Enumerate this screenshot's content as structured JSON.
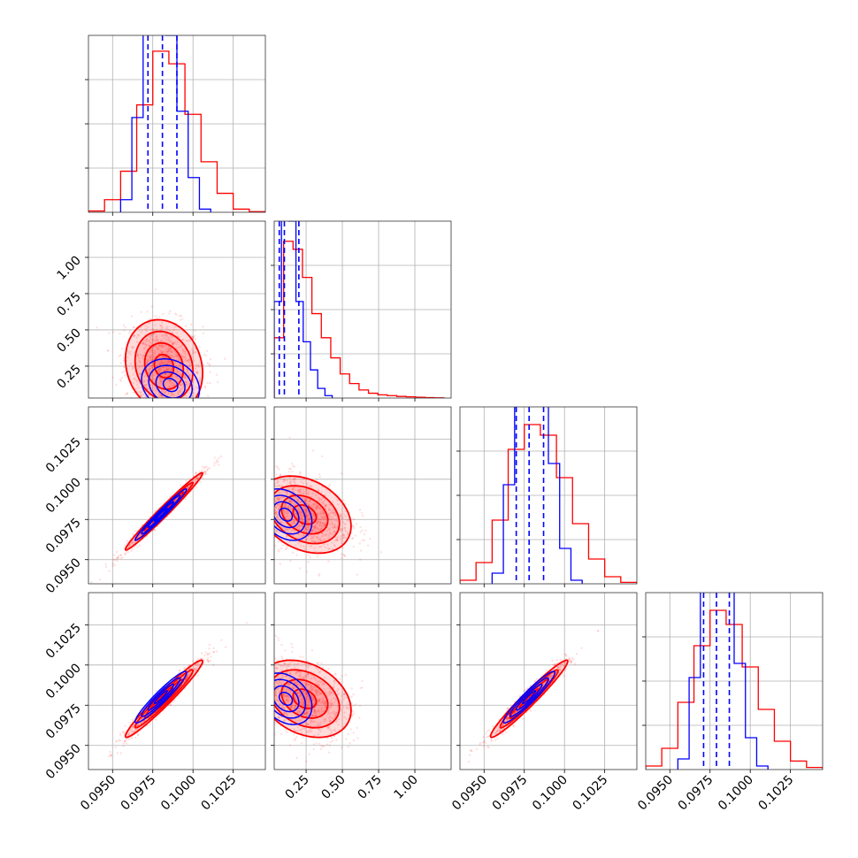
{
  "chart_data": {
    "type": "corner",
    "colors": {
      "posterior_a": "#ff0000",
      "posterior_b": "#0000ff",
      "grid": "#b0b0b0"
    },
    "parameters": [
      {
        "range": [
          0.0935,
          0.1045
        ],
        "ticks": [
          0.095,
          0.0975,
          0.1,
          0.1025
        ],
        "tick_labels": [
          "0.0950",
          "0.0975",
          "0.1000",
          "0.1025"
        ]
      },
      {
        "range": [
          0.03,
          1.25
        ],
        "ticks": [
          0.25,
          0.5,
          0.75,
          1.0
        ],
        "tick_labels": [
          "0.25",
          "0.50",
          "0.75",
          "1.00"
        ]
      },
      {
        "range": [
          0.0935,
          0.1045
        ],
        "ticks": [
          0.095,
          0.0975,
          0.1,
          0.1025
        ],
        "tick_labels": [
          "0.0950",
          "0.0975",
          "0.1000",
          "0.1025"
        ]
      },
      {
        "range": [
          0.0935,
          0.1045
        ],
        "ticks": [
          0.095,
          0.0975,
          0.1,
          0.1025
        ],
        "tick_labels": [
          "0.0950",
          "0.0975",
          "0.1000",
          "0.1025"
        ]
      }
    ],
    "histograms": [
      {
        "param": 0,
        "edges": [
          0.0935,
          0.0945,
          0.0955,
          0.0965,
          0.0975,
          0.0985,
          0.0995,
          0.1005,
          0.1015,
          0.1025,
          0.1035,
          0.1045
        ],
        "red": [
          0.02,
          0.2,
          0.65,
          1.7,
          2.55,
          2.35,
          1.55,
          0.8,
          0.3,
          0.05,
          0.01
        ],
        "blue_edges": [
          0.0955,
          0.0962,
          0.0969,
          0.0976,
          0.0983,
          0.099,
          0.0997,
          0.1004,
          0.1011
        ],
        "blue": [
          0.2,
          1.5,
          3.4,
          3.0,
          2.8,
          1.6,
          0.55,
          0.05
        ],
        "quantiles": [
          0.0972,
          0.0981,
          0.099
        ],
        "ylim": [
          0,
          2.8
        ]
      },
      {
        "param": 1,
        "edges": [
          0.03,
          0.095,
          0.16,
          0.225,
          0.29,
          0.355,
          0.42,
          0.485,
          0.55,
          0.615,
          0.68,
          0.745,
          0.81,
          0.875,
          0.94,
          1.005,
          1.07,
          1.135,
          1.2
        ],
        "red": [
          0.75,
          1.95,
          1.85,
          1.5,
          1.05,
          0.75,
          0.5,
          0.3,
          0.18,
          0.1,
          0.06,
          0.04,
          0.03,
          0.02,
          0.015,
          0.01,
          0.005,
          0.003
        ],
        "blue_edges": [
          0.03,
          0.08,
          0.13,
          0.18,
          0.23,
          0.28,
          0.33,
          0.38,
          0.43
        ],
        "blue": [
          1.2,
          3.2,
          2.2,
          1.2,
          0.7,
          0.35,
          0.12,
          0.03
        ],
        "quantiles": [
          0.065,
          0.1,
          0.2
        ],
        "ylim": [
          0,
          2.2
        ]
      },
      {
        "param": 2,
        "edges": [
          0.0935,
          0.0945,
          0.0955,
          0.0965,
          0.0975,
          0.0985,
          0.0995,
          0.1005,
          0.1015,
          0.1025,
          0.1035,
          0.1045
        ],
        "red": [
          0.05,
          0.3,
          0.9,
          1.9,
          2.25,
          2.1,
          1.5,
          0.85,
          0.35,
          0.1,
          0.02
        ],
        "blue_edges": [
          0.0955,
          0.0962,
          0.0969,
          0.0976,
          0.0983,
          0.099,
          0.0997,
          0.1004,
          0.1011
        ],
        "blue": [
          0.15,
          1.4,
          3.0,
          2.9,
          2.7,
          1.7,
          0.5,
          0.05
        ],
        "quantiles": [
          0.097,
          0.0978,
          0.0987
        ],
        "ylim": [
          0,
          2.5
        ]
      },
      {
        "param": 3,
        "edges": [
          0.0935,
          0.0945,
          0.0955,
          0.0965,
          0.0975,
          0.0985,
          0.0995,
          0.1005,
          0.1015,
          0.1025,
          0.1035,
          0.1045
        ],
        "red": [
          0.05,
          0.3,
          0.95,
          1.75,
          2.25,
          2.05,
          1.45,
          0.85,
          0.4,
          0.12,
          0.03
        ],
        "blue_edges": [
          0.0955,
          0.0962,
          0.0969,
          0.0976,
          0.0983,
          0.099,
          0.0997,
          0.1004,
          0.1011
        ],
        "blue": [
          0.15,
          1.3,
          3.0,
          3.1,
          2.6,
          1.5,
          0.45,
          0.05
        ],
        "quantiles": [
          0.0971,
          0.0979,
          0.0987
        ],
        "ylim": [
          0,
          2.5
        ]
      }
    ],
    "panels2d": [
      {
        "x": 0,
        "y": 1,
        "red": {
          "mean": [
            0.0982,
            0.25
          ],
          "sd": [
            0.0012,
            0.16
          ],
          "rho": -0.15
        },
        "blue": {
          "mean": [
            0.0986,
            0.12
          ],
          "sd": [
            0.0009,
            0.09
          ],
          "rho": -0.2
        }
      },
      {
        "x": 0,
        "y": 2,
        "red": {
          "mean": [
            0.0982,
            0.098
          ],
          "sd": [
            0.0012,
            0.0012
          ],
          "rho": 0.985
        },
        "blue": {
          "mean": [
            0.098,
            0.0978
          ],
          "sd": [
            0.0008,
            0.0008
          ],
          "rho": 0.98
        }
      },
      {
        "x": 1,
        "y": 2,
        "red": {
          "mean": [
            0.24,
            0.0978
          ],
          "sd": [
            0.16,
            0.0012
          ],
          "rho": -0.3
        },
        "blue": {
          "mean": [
            0.11,
            0.0978
          ],
          "sd": [
            0.09,
            0.0008
          ],
          "rho": -0.3
        }
      },
      {
        "x": 0,
        "y": 3,
        "red": {
          "mean": [
            0.0982,
            0.0979
          ],
          "sd": [
            0.0012,
            0.0012
          ],
          "rho": 0.97
        },
        "blue": {
          "mean": [
            0.098,
            0.098
          ],
          "sd": [
            0.0008,
            0.0008
          ],
          "rho": 0.95
        }
      },
      {
        "x": 1,
        "y": 3,
        "red": {
          "mean": [
            0.24,
            0.0979
          ],
          "sd": [
            0.16,
            0.0012
          ],
          "rho": -0.3
        },
        "blue": {
          "mean": [
            0.11,
            0.0979
          ],
          "sd": [
            0.09,
            0.0008
          ],
          "rho": -0.3
        }
      },
      {
        "x": 2,
        "y": 3,
        "red": {
          "mean": [
            0.0978,
            0.0979
          ],
          "sd": [
            0.0012,
            0.0012
          ],
          "rho": 0.97
        },
        "blue": {
          "mean": [
            0.0978,
            0.098
          ],
          "sd": [
            0.0008,
            0.0008
          ],
          "rho": 0.95
        }
      }
    ],
    "title": "",
    "xlabel": "",
    "ylabel": "",
    "grid": true,
    "contour_levels_sigma": [
      0.5,
      1.0,
      1.5,
      2.0
    ]
  }
}
